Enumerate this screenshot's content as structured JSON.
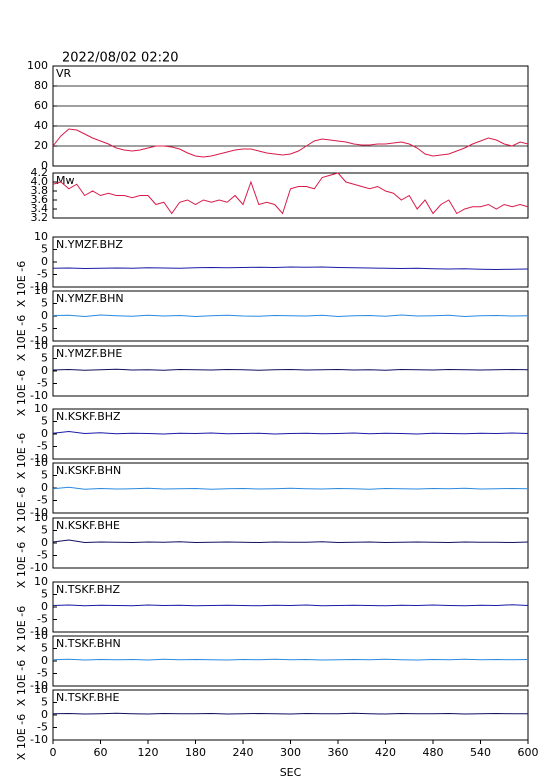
{
  "chart_data": [
    {
      "type": "line",
      "title": "2022/08/02 02:20",
      "label": "VR",
      "xlim": [
        0,
        600
      ],
      "x": [
        0,
        10,
        20,
        30,
        40,
        50,
        60,
        70,
        80,
        90,
        100,
        110,
        120,
        130,
        140,
        150,
        160,
        170,
        180,
        190,
        200,
        210,
        220,
        230,
        240,
        250,
        260,
        270,
        280,
        290,
        300,
        310,
        320,
        330,
        340,
        350,
        360,
        370,
        380,
        390,
        400,
        410,
        420,
        430,
        440,
        450,
        460,
        470,
        480,
        490,
        500,
        510,
        520,
        530,
        540,
        550,
        560,
        570,
        580,
        590,
        600
      ],
      "series": [
        {
          "color": "#d81b4a",
          "values": [
            20,
            30,
            37,
            36,
            32,
            28,
            25,
            22,
            18,
            16,
            15,
            16,
            18,
            20,
            20,
            19,
            17,
            13,
            10,
            9,
            10,
            12,
            14,
            16,
            17,
            17,
            15,
            13,
            12,
            11,
            12,
            15,
            20,
            25,
            27,
            26,
            25,
            24,
            22,
            21,
            21,
            22,
            22,
            23,
            24,
            22,
            18,
            12,
            10,
            11,
            12,
            15,
            18,
            22,
            25,
            28,
            26,
            22,
            20,
            24,
            22
          ]
        }
      ],
      "ylim": [
        0,
        100
      ],
      "yticks": [
        0,
        20,
        40,
        60,
        80,
        100
      ],
      "grid": true
    },
    {
      "type": "line",
      "label": "Mw",
      "xlim": [
        0,
        600
      ],
      "x": [
        0,
        10,
        20,
        30,
        40,
        50,
        60,
        70,
        80,
        90,
        100,
        110,
        120,
        130,
        140,
        150,
        160,
        170,
        180,
        190,
        200,
        210,
        220,
        230,
        240,
        250,
        260,
        270,
        280,
        290,
        300,
        310,
        320,
        330,
        340,
        350,
        360,
        370,
        380,
        390,
        400,
        410,
        420,
        430,
        440,
        450,
        460,
        470,
        480,
        490,
        500,
        510,
        520,
        530,
        540,
        550,
        560,
        570,
        580,
        590,
        600
      ],
      "series": [
        {
          "color": "#d81b4a",
          "values": [
            3.95,
            4.0,
            3.85,
            3.95,
            3.7,
            3.8,
            3.7,
            3.75,
            3.7,
            3.7,
            3.65,
            3.7,
            3.7,
            3.5,
            3.55,
            3.3,
            3.55,
            3.6,
            3.5,
            3.6,
            3.55,
            3.6,
            3.55,
            3.7,
            3.5,
            4.0,
            3.5,
            3.55,
            3.5,
            3.3,
            3.85,
            3.9,
            3.9,
            3.85,
            4.1,
            4.15,
            4.2,
            4.0,
            3.95,
            3.9,
            3.85,
            3.9,
            3.8,
            3.75,
            3.6,
            3.7,
            3.4,
            3.6,
            3.3,
            3.5,
            3.6,
            3.3,
            3.4,
            3.45,
            3.45,
            3.5,
            3.4,
            3.5,
            3.45,
            3.5,
            3.45
          ]
        }
      ],
      "ylim": [
        3.2,
        4.2
      ],
      "yticks": [
        3.2,
        3.4,
        3.6,
        3.8,
        {
          "value": 4,
          "label": "4.0"
        },
        4.2
      ],
      "grid": false
    },
    {
      "type": "line",
      "label": "N.YMZF.BHZ",
      "ylabel": "X 10E -6",
      "xlim": [
        0,
        600
      ],
      "x": [
        0,
        20,
        40,
        60,
        80,
        100,
        120,
        140,
        160,
        180,
        200,
        220,
        240,
        260,
        280,
        300,
        320,
        340,
        360,
        380,
        400,
        420,
        440,
        460,
        480,
        500,
        520,
        540,
        560,
        580,
        600
      ],
      "series": [
        {
          "color": "#1a1aa8",
          "values": [
            -2.5,
            -2.4,
            -2.6,
            -2.5,
            -2.4,
            -2.5,
            -2.3,
            -2.4,
            -2.5,
            -2.3,
            -2.2,
            -2.3,
            -2.2,
            -2.1,
            -2.2,
            -2.0,
            -2.1,
            -2.0,
            -2.2,
            -2.3,
            -2.4,
            -2.5,
            -2.6,
            -2.5,
            -2.7,
            -2.8,
            -2.7,
            -2.9,
            -3.0,
            -2.9,
            -2.8
          ]
        }
      ],
      "ylim": [
        -10,
        10
      ],
      "yticks": [
        -10,
        -5,
        0,
        5,
        10
      ]
    },
    {
      "type": "line",
      "label": "N.YMZF.BHN",
      "ylabel": "X 10E -6",
      "xlim": [
        0,
        600
      ],
      "x": [
        0,
        20,
        40,
        60,
        80,
        100,
        120,
        140,
        160,
        180,
        200,
        220,
        240,
        260,
        280,
        300,
        320,
        340,
        360,
        380,
        400,
        420,
        440,
        460,
        480,
        500,
        520,
        540,
        560,
        580,
        600
      ],
      "series": [
        {
          "color": "#2a8ae0",
          "values": [
            0.2,
            0.3,
            -0.2,
            0.4,
            0.1,
            -0.1,
            0.3,
            0.0,
            0.2,
            -0.2,
            0.1,
            0.3,
            0.0,
            -0.1,
            0.2,
            0.1,
            0.0,
            0.3,
            -0.2,
            0.1,
            0.2,
            -0.1,
            0.4,
            0.0,
            0.1,
            0.3,
            -0.2,
            0.1,
            0.2,
            0.0,
            0.1
          ]
        }
      ],
      "ylim": [
        -10,
        10
      ],
      "yticks": [
        -10,
        -5,
        0,
        5,
        10
      ]
    },
    {
      "type": "line",
      "label": "N.YMZF.BHE",
      "ylabel": "X 10E -6",
      "xlim": [
        0,
        600
      ],
      "x": [
        0,
        20,
        40,
        60,
        80,
        100,
        120,
        140,
        160,
        180,
        200,
        220,
        240,
        260,
        280,
        300,
        320,
        340,
        360,
        380,
        400,
        420,
        440,
        460,
        480,
        500,
        520,
        540,
        560,
        580,
        600
      ],
      "series": [
        {
          "color": "#101060",
          "values": [
            0.4,
            0.6,
            0.3,
            0.5,
            0.7,
            0.4,
            0.5,
            0.3,
            0.6,
            0.5,
            0.4,
            0.6,
            0.5,
            0.3,
            0.5,
            0.6,
            0.4,
            0.5,
            0.6,
            0.4,
            0.5,
            0.3,
            0.6,
            0.5,
            0.4,
            0.6,
            0.5,
            0.4,
            0.5,
            0.6,
            0.5
          ]
        }
      ],
      "ylim": [
        -10,
        10
      ],
      "yticks": [
        -10,
        -5,
        0,
        5,
        10
      ]
    },
    {
      "type": "line",
      "label": "N.KSKF.BHZ",
      "ylabel": "X 10E -6",
      "xlim": [
        0,
        600
      ],
      "x": [
        0,
        20,
        40,
        60,
        80,
        100,
        120,
        140,
        160,
        180,
        200,
        220,
        240,
        260,
        280,
        300,
        320,
        340,
        360,
        380,
        400,
        420,
        440,
        460,
        480,
        500,
        520,
        540,
        560,
        580,
        600
      ],
      "series": [
        {
          "color": "#1a1aa8",
          "values": [
            0.3,
            1.0,
            0.2,
            0.5,
            0.1,
            0.3,
            0.2,
            0.0,
            0.3,
            0.2,
            0.4,
            0.1,
            0.2,
            0.3,
            0.0,
            0.2,
            0.3,
            0.1,
            0.2,
            0.4,
            0.1,
            0.3,
            0.2,
            0.0,
            0.3,
            0.2,
            0.1,
            0.3,
            0.2,
            0.4,
            0.2
          ]
        }
      ],
      "ylim": [
        -10,
        10
      ],
      "yticks": [
        -10,
        -5,
        0,
        5,
        10
      ]
    },
    {
      "type": "line",
      "label": "N.KSKF.BHN",
      "ylabel": "X 10E -6",
      "xlim": [
        0,
        600
      ],
      "x": [
        0,
        20,
        40,
        60,
        80,
        100,
        120,
        140,
        160,
        180,
        200,
        220,
        240,
        260,
        280,
        300,
        320,
        340,
        360,
        380,
        400,
        420,
        440,
        460,
        480,
        500,
        520,
        540,
        560,
        580,
        600
      ],
      "series": [
        {
          "color": "#2a8ae0",
          "values": [
            -0.3,
            0.3,
            -0.5,
            -0.2,
            -0.4,
            -0.3,
            -0.1,
            -0.4,
            -0.3,
            -0.2,
            -0.5,
            -0.3,
            -0.2,
            -0.4,
            -0.3,
            -0.1,
            -0.3,
            -0.4,
            -0.2,
            -0.3,
            -0.5,
            -0.2,
            -0.3,
            -0.4,
            -0.2,
            -0.3,
            -0.1,
            -0.4,
            -0.3,
            -0.2,
            -0.3
          ]
        }
      ],
      "ylim": [
        -10,
        10
      ],
      "yticks": [
        -10,
        -5,
        0,
        5,
        10
      ]
    },
    {
      "type": "line",
      "label": "N.KSKF.BHE",
      "ylabel": "X 10E -6",
      "xlim": [
        0,
        600
      ],
      "x": [
        0,
        20,
        40,
        60,
        80,
        100,
        120,
        140,
        160,
        180,
        200,
        220,
        240,
        260,
        280,
        300,
        320,
        340,
        360,
        380,
        400,
        420,
        440,
        460,
        480,
        500,
        520,
        540,
        560,
        580,
        600
      ],
      "series": [
        {
          "color": "#101060",
          "values": [
            0.4,
            1.2,
            0.2,
            0.4,
            0.3,
            0.2,
            0.4,
            0.3,
            0.5,
            0.2,
            0.3,
            0.4,
            0.3,
            0.2,
            0.4,
            0.3,
            0.3,
            0.5,
            0.2,
            0.3,
            0.4,
            0.2,
            0.3,
            0.4,
            0.3,
            0.2,
            0.4,
            0.3,
            0.3,
            0.2,
            0.4
          ]
        }
      ],
      "ylim": [
        -10,
        10
      ],
      "yticks": [
        -10,
        -5,
        0,
        5,
        10
      ]
    },
    {
      "type": "line",
      "label": "N.TSKF.BHZ",
      "ylabel": "X 10E -6",
      "xlim": [
        0,
        600
      ],
      "x": [
        0,
        20,
        40,
        60,
        80,
        100,
        120,
        140,
        160,
        180,
        200,
        220,
        240,
        260,
        280,
        300,
        320,
        340,
        360,
        380,
        400,
        420,
        440,
        460,
        480,
        500,
        520,
        540,
        560,
        580,
        600
      ],
      "series": [
        {
          "color": "#1a1aa8",
          "values": [
            0.6,
            0.8,
            0.5,
            0.7,
            0.6,
            0.5,
            0.8,
            0.6,
            0.7,
            0.5,
            0.6,
            0.7,
            0.6,
            0.5,
            0.7,
            0.6,
            0.8,
            0.5,
            0.6,
            0.7,
            0.6,
            0.5,
            0.7,
            0.6,
            0.8,
            0.6,
            0.5,
            0.7,
            0.6,
            0.9,
            0.6
          ]
        }
      ],
      "ylim": [
        -10,
        10
      ],
      "yticks": [
        -10,
        -5,
        0,
        5,
        10
      ]
    },
    {
      "type": "line",
      "label": "N.TSKF.BHN",
      "ylabel": "X 10E -6",
      "xlim": [
        0,
        600
      ],
      "x": [
        0,
        20,
        40,
        60,
        80,
        100,
        120,
        140,
        160,
        180,
        200,
        220,
        240,
        260,
        280,
        300,
        320,
        340,
        360,
        380,
        400,
        420,
        440,
        460,
        480,
        500,
        520,
        540,
        560,
        580,
        600
      ],
      "series": [
        {
          "color": "#2a8ae0",
          "values": [
            0.5,
            0.7,
            0.4,
            0.6,
            0.5,
            0.6,
            0.4,
            0.7,
            0.5,
            0.6,
            0.5,
            0.4,
            0.6,
            0.5,
            0.7,
            0.5,
            0.6,
            0.4,
            0.5,
            0.6,
            0.5,
            0.7,
            0.5,
            0.4,
            0.6,
            0.5,
            0.7,
            0.5,
            0.6,
            0.5,
            0.6
          ]
        }
      ],
      "ylim": [
        -10,
        10
      ],
      "yticks": [
        -10,
        -5,
        0,
        5,
        10
      ]
    },
    {
      "type": "line",
      "label": "N.TSKF.BHE",
      "ylabel": "X 10E -6",
      "xlim": [
        0,
        600
      ],
      "xlabel": "SEC",
      "xticks": [
        0,
        60,
        120,
        180,
        240,
        300,
        360,
        420,
        480,
        540,
        600
      ],
      "x": [
        0,
        20,
        40,
        60,
        80,
        100,
        120,
        140,
        160,
        180,
        200,
        220,
        240,
        260,
        280,
        300,
        320,
        340,
        360,
        380,
        400,
        420,
        440,
        460,
        480,
        500,
        520,
        540,
        560,
        580,
        600
      ],
      "series": [
        {
          "color": "#101060",
          "values": [
            0.5,
            0.6,
            0.4,
            0.5,
            0.7,
            0.5,
            0.4,
            0.6,
            0.5,
            0.5,
            0.6,
            0.4,
            0.5,
            0.6,
            0.5,
            0.4,
            0.6,
            0.5,
            0.5,
            0.7,
            0.5,
            0.4,
            0.6,
            0.5,
            0.5,
            0.6,
            0.4,
            0.5,
            0.6,
            0.5,
            0.5
          ]
        }
      ],
      "ylim": [
        -10,
        10
      ],
      "yticks": [
        -10,
        -5,
        0,
        5,
        10
      ]
    }
  ]
}
